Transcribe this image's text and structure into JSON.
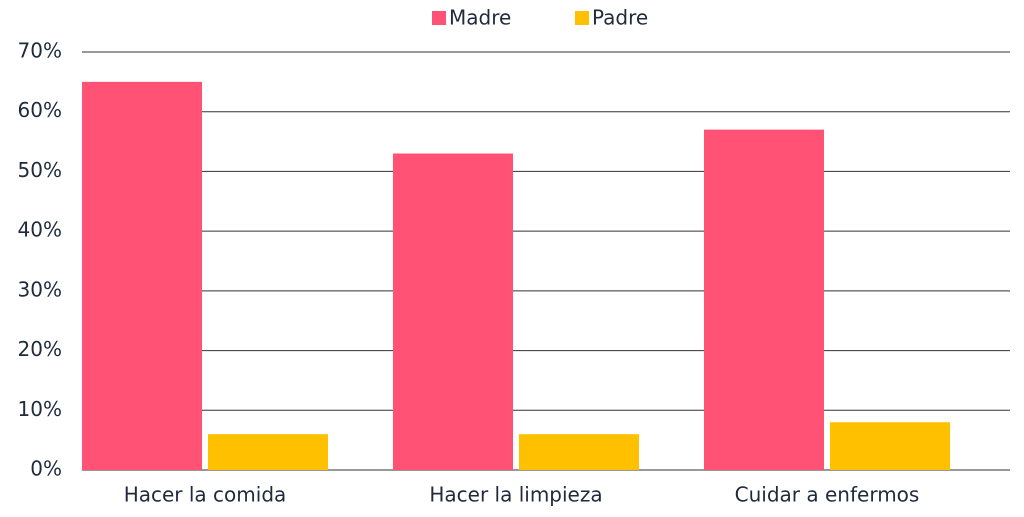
{
  "chart_data": {
    "type": "bar",
    "categories": [
      "Hacer la comida",
      "Hacer la limpieza",
      "Cuidar a enfermos"
    ],
    "series": [
      {
        "name": "Madre",
        "color": "#ff5274",
        "values": [
          65,
          53,
          57
        ]
      },
      {
        "name": "Padre",
        "color": "#ffc000",
        "values": [
          6,
          6,
          8
        ]
      }
    ],
    "ylim": [
      0,
      70
    ],
    "yticks": [
      {
        "value": 0,
        "label": "0%"
      },
      {
        "value": 10,
        "label": "10%"
      },
      {
        "value": 20,
        "label": "20%"
      },
      {
        "value": 30,
        "label": "30%"
      },
      {
        "value": 40,
        "label": "40%"
      },
      {
        "value": 50,
        "label": "50%"
      },
      {
        "value": 60,
        "label": "60%"
      },
      {
        "value": 70,
        "label": "70%"
      }
    ],
    "grid": true,
    "legend": "top"
  }
}
